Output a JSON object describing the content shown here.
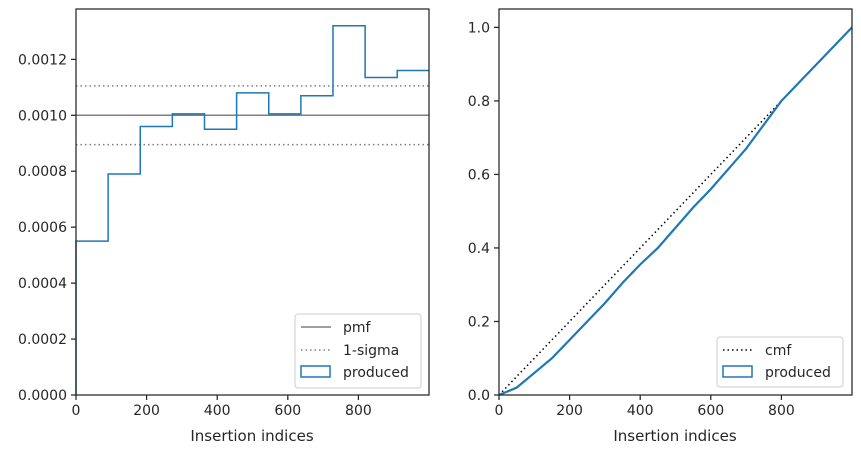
{
  "colors": {
    "produced": "#1f77b4",
    "pmf": "#808080",
    "sigma": "#808080",
    "cmf": "#000000",
    "axes": "#262626"
  },
  "chart_data": [
    {
      "type": "step",
      "xlabel": "Insertion indices",
      "ylabel": "",
      "xlim": [
        0,
        1000
      ],
      "ylim": [
        0,
        0.00138
      ],
      "xticks": [
        0,
        200,
        400,
        600,
        800
      ],
      "xtick_labels": [
        "0",
        "200",
        "400",
        "600",
        "800"
      ],
      "yticks": [
        0,
        0.0002,
        0.0004,
        0.0006,
        0.0008,
        0.001,
        0.0012
      ],
      "ytick_labels": [
        "0.0000",
        "0.0002",
        "0.0004",
        "0.0006",
        "0.0008",
        "0.0010",
        "0.0012"
      ],
      "pmf": 0.001,
      "sigma": [
        0.000895,
        0.001105
      ],
      "bin_edges": [
        0,
        91,
        182,
        273,
        364,
        455,
        546,
        637,
        728,
        819,
        910,
        1000
      ],
      "series": [
        {
          "name": "produced",
          "values": [
            0.00055,
            0.00079,
            0.00096,
            0.001005,
            0.00095,
            0.00108,
            0.001005,
            0.00107,
            0.00132,
            0.001135,
            0.00116
          ]
        }
      ],
      "legend": {
        "position": "lower right",
        "entries": [
          "pmf",
          "1-sigma",
          "produced"
        ]
      }
    },
    {
      "type": "line",
      "xlabel": "Insertion indices",
      "ylabel": "",
      "xlim": [
        0,
        1000
      ],
      "ylim": [
        0,
        1.05
      ],
      "xticks": [
        0,
        200,
        400,
        600,
        800
      ],
      "xtick_labels": [
        "0",
        "200",
        "400",
        "600",
        "800"
      ],
      "yticks": [
        0,
        0.2,
        0.4,
        0.6,
        0.8,
        1.0
      ],
      "ytick_labels": [
        "0.0",
        "0.2",
        "0.4",
        "0.6",
        "0.8",
        "1.0"
      ],
      "series": [
        {
          "name": "cmf",
          "x": [
            0,
            1000
          ],
          "y": [
            0,
            1.0
          ]
        },
        {
          "name": "produced",
          "x": [
            0,
            50,
            100,
            150,
            200,
            250,
            300,
            350,
            400,
            450,
            500,
            550,
            600,
            650,
            700,
            750,
            800,
            850,
            900,
            950,
            1000
          ],
          "y": [
            0,
            0.02,
            0.06,
            0.1,
            0.15,
            0.2,
            0.25,
            0.305,
            0.355,
            0.4,
            0.455,
            0.51,
            0.56,
            0.615,
            0.67,
            0.735,
            0.8,
            0.85,
            0.9,
            0.95,
            1.0
          ]
        }
      ],
      "legend": {
        "position": "lower right",
        "entries": [
          "cmf",
          "produced"
        ]
      }
    }
  ]
}
